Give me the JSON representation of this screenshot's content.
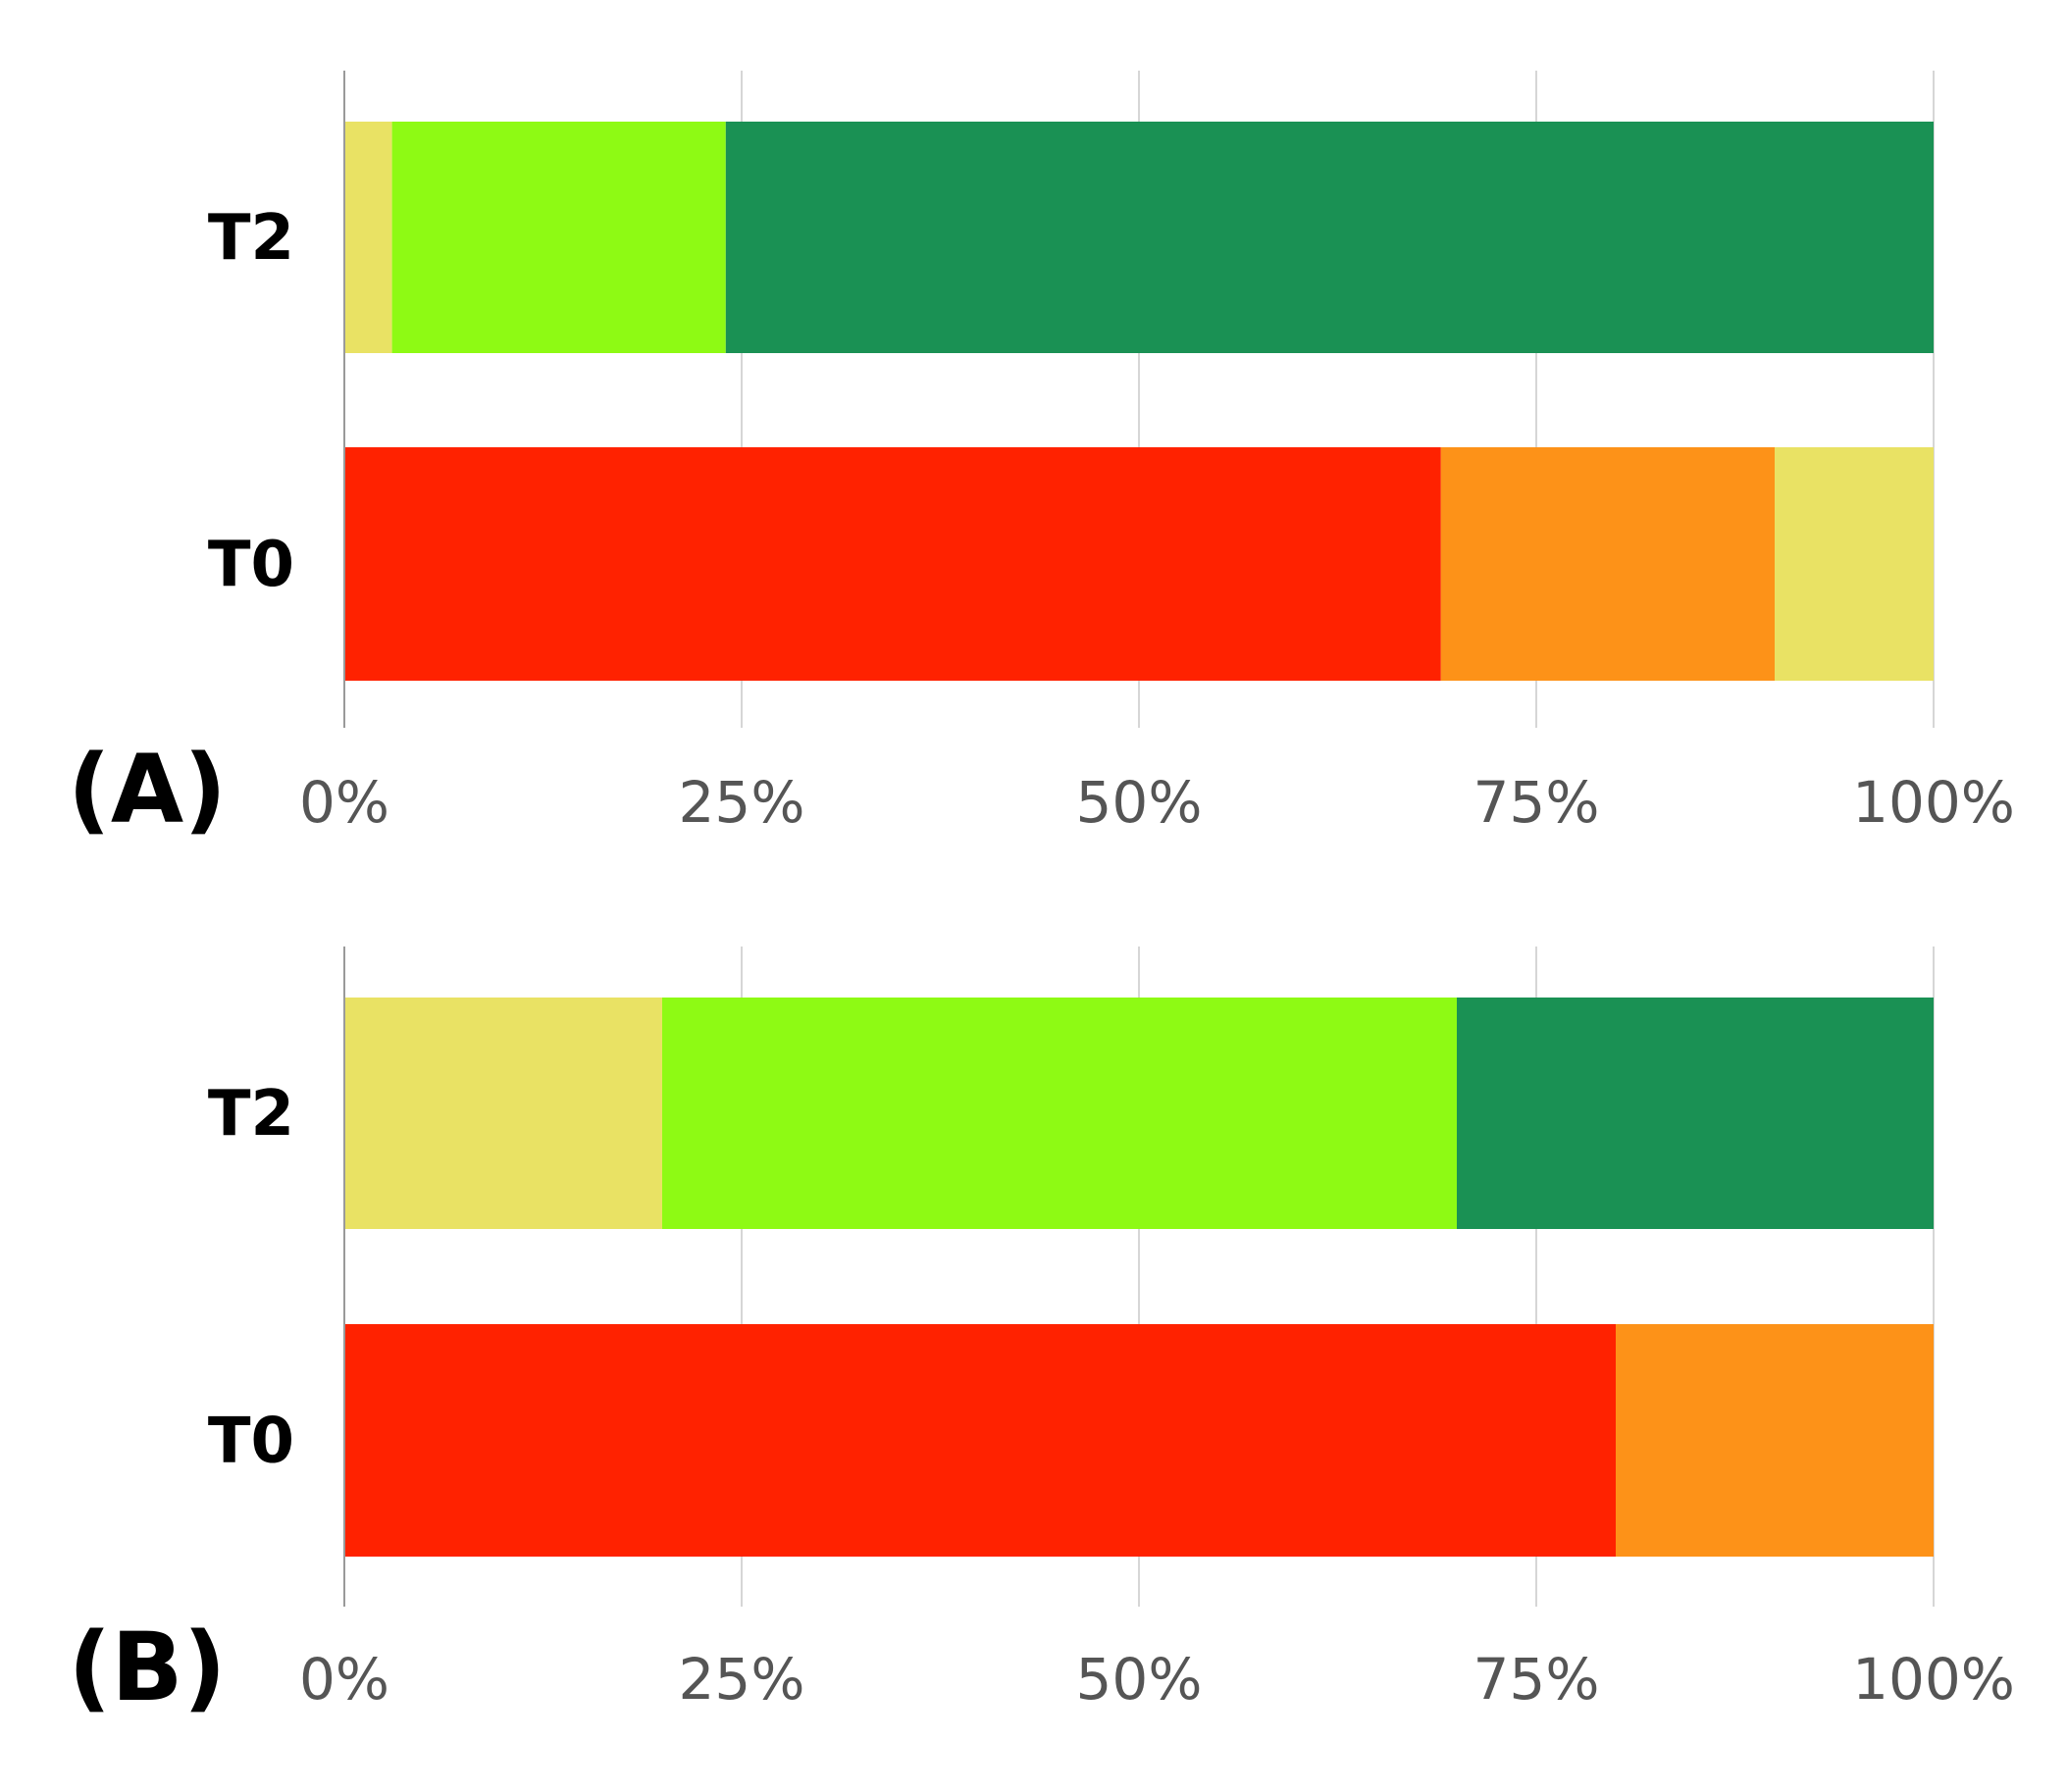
{
  "colors": {
    "red": "#ff2200",
    "orange": "#fd9218",
    "yellow": "#e9e264",
    "light_green": "#8efa14",
    "dark_green": "#1a9154",
    "gridline": "#d6d6d6",
    "axis": "#9a9a9a",
    "tick_text": "#555555"
  },
  "chart_data": [
    {
      "type": "bar",
      "orientation": "horizontal",
      "stacked": true,
      "panel_label": "(A)",
      "categories": [
        "T2",
        "T0"
      ],
      "xlim": [
        0,
        100
      ],
      "x_ticks": [
        "0%",
        "25%",
        "50%",
        "75%",
        "100%"
      ],
      "grid": true,
      "legend": "none",
      "series": [
        {
          "color": "#ff2200",
          "values": [
            0,
            69
          ]
        },
        {
          "color": "#fd9218",
          "values": [
            0,
            21
          ]
        },
        {
          "color": "#e9e264",
          "values": [
            3,
            10
          ]
        },
        {
          "color": "#8efa14",
          "values": [
            21,
            0
          ]
        },
        {
          "color": "#1a9154",
          "values": [
            76,
            0
          ]
        }
      ]
    },
    {
      "type": "bar",
      "orientation": "horizontal",
      "stacked": true,
      "panel_label": "(B)",
      "categories": [
        "T2",
        "T0"
      ],
      "xlim": [
        0,
        100
      ],
      "x_ticks": [
        "0%",
        "25%",
        "50%",
        "75%",
        "100%"
      ],
      "grid": true,
      "legend": "none",
      "series": [
        {
          "color": "#ff2200",
          "values": [
            0,
            80
          ]
        },
        {
          "color": "#fd9218",
          "values": [
            0,
            20
          ]
        },
        {
          "color": "#e9e264",
          "values": [
            20,
            0
          ]
        },
        {
          "color": "#8efa14",
          "values": [
            50,
            0
          ]
        },
        {
          "color": "#1a9154",
          "values": [
            30,
            0
          ]
        }
      ]
    }
  ]
}
